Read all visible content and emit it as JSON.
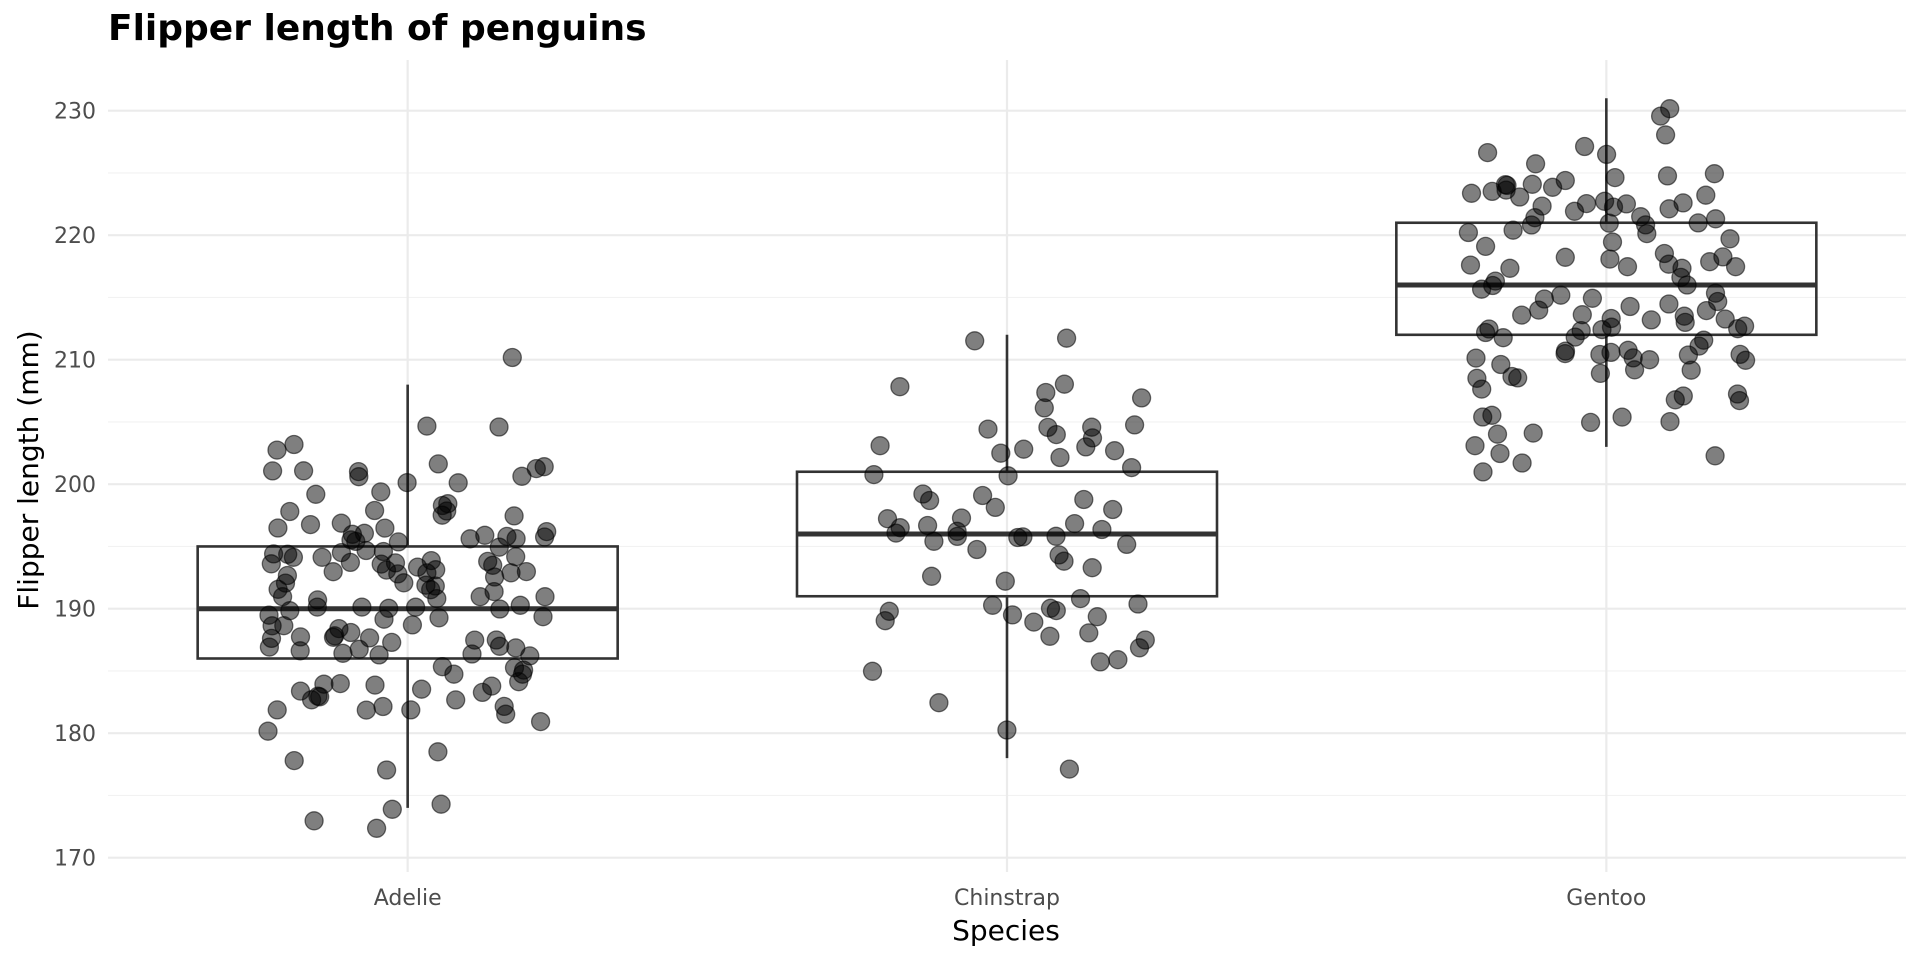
{
  "chart_data": {
    "type": "box",
    "title": "Flipper length of penguins",
    "xlabel": "Species",
    "ylabel": "Flipper length (mm)",
    "categories": [
      "Adelie",
      "Chinstrap",
      "Gentoo"
    ],
    "ylim": [
      168,
      232
    ],
    "yticks": [
      170,
      180,
      190,
      200,
      210,
      220,
      230
    ],
    "grid": true,
    "legend": "none",
    "box_stats": [
      {
        "category": "Adelie",
        "min": 174,
        "q1": 186,
        "median": 190,
        "q3": 195,
        "max": 208,
        "outliers": [
          210,
          172
        ]
      },
      {
        "category": "Chinstrap",
        "min": 178,
        "q1": 191,
        "median": 196,
        "q3": 201,
        "max": 212,
        "outliers": []
      },
      {
        "category": "Gentoo",
        "min": 203,
        "q1": 212,
        "median": 216,
        "q3": 221,
        "max": 231,
        "outliers": []
      }
    ],
    "point_color": "#000000",
    "point_alpha": 0.5,
    "box_line_color": "#333333",
    "grid_color": "#ebebeb"
  }
}
